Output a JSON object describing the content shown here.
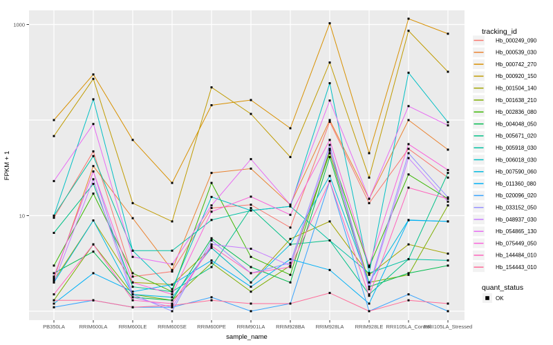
{
  "figure": {
    "y_axis_title": "FPKM + 1",
    "x_axis_title": "sample_name",
    "y_tick_labels": [
      {
        "value": 1000,
        "label": "1000"
      },
      {
        "value": 10,
        "label": "10"
      }
    ],
    "gridline_values": [
      1,
      10,
      100,
      1000
    ],
    "panel_color": "#EBEBEB",
    "grid_color": "#FFFFFF",
    "axis_text_color": "#4D4D4D",
    "tick_mark_color": "#333333",
    "point_color": "#000000",
    "legend": {
      "tracking_title": "tracking_id",
      "quant_title": "quant_status",
      "quant_items": [
        {
          "label": "OK",
          "marker": "black-square"
        }
      ],
      "key_background": "#F2F2F2"
    }
  },
  "chart_data": {
    "type": "line",
    "x_type": "categorical",
    "y_scale": "log10",
    "ylim": [
      0.9,
      1400
    ],
    "legend_position": "right",
    "marker": "black-square",
    "title": "",
    "xlabel": "sample_name",
    "ylabel": "FPKM + 1",
    "categories": [
      "PB350LA",
      "RRIM600LA",
      "RRIM600LE",
      "RRIM600SE",
      "RRIM600PE",
      "RRIM901LA",
      "RRIM928BA",
      "RRIM928LA",
      "RRIM928LE",
      "RRII105LA_Control",
      "RRII105LA_Stressed"
    ],
    "series": [
      {
        "name": "Hb_000249_090",
        "color": "#F8766D",
        "values": [
          9.5,
          47,
          2.3,
          2.6,
          12,
          13,
          7.5,
          96,
          13.5,
          50,
          25
        ]
      },
      {
        "name": "Hb_000539_030",
        "color": "#EA8331",
        "values": [
          2.2,
          33,
          9.4,
          2.7,
          28,
          31,
          13,
          100,
          15,
          100,
          49
        ]
      },
      {
        "name": "Hb_000742_270",
        "color": "#D89000",
        "values": [
          100,
          300,
          62,
          22,
          143,
          162,
          82,
          1030,
          45,
          1150,
          800
        ]
      },
      {
        "name": "Hb_000920_150",
        "color": "#C09B00",
        "values": [
          68,
          270,
          13.5,
          8.7,
          220,
          116,
          41,
          400,
          25,
          860,
          320
        ]
      },
      {
        "name": "Hb_001504_140",
        "color": "#A3A500",
        "values": [
          2.1,
          8.9,
          2.0,
          1.9,
          4.6,
          2.0,
          5.7,
          8.7,
          2.4,
          5.0,
          4.0
        ]
      },
      {
        "name": "Hb_001638_210",
        "color": "#7CAE00",
        "values": [
          1.3,
          5.0,
          1.5,
          1.3,
          3.2,
          1.6,
          3.0,
          45,
          2.0,
          2.4,
          12.8
        ]
      },
      {
        "name": "Hb_002836_080",
        "color": "#39B600",
        "values": [
          3.0,
          17,
          2.5,
          1.6,
          22,
          3.7,
          2.4,
          48,
          2.9,
          27,
          15
        ]
      },
      {
        "name": "Hb_004048_050",
        "color": "#00BB4E",
        "values": [
          2.5,
          4.2,
          1.4,
          1.3,
          5.8,
          2.9,
          2.0,
          41,
          1.8,
          2.5,
          3.0
        ]
      },
      {
        "name": "Hb_005671_020",
        "color": "#00C087",
        "values": [
          6.6,
          21.5,
          1.8,
          1.6,
          2.9,
          12,
          5.0,
          5.5,
          1.5,
          3.5,
          28
        ]
      },
      {
        "name": "Hb_005918_030",
        "color": "#00C1A3",
        "values": [
          10,
          42,
          4.3,
          4.3,
          9.0,
          11.3,
          12.5,
          5.5,
          2.5,
          3.5,
          3.4
        ]
      },
      {
        "name": "Hb_006018_030",
        "color": "#00BFC4",
        "values": [
          10,
          165,
          4.3,
          1.7,
          15.7,
          11.3,
          12.5,
          243,
          2.5,
          313,
          95
        ]
      },
      {
        "name": "Hb_007590_060",
        "color": "#00BAE0",
        "values": [
          2.0,
          8.9,
          1.5,
          1.4,
          4.6,
          2.0,
          5.0,
          26,
          2.0,
          9.0,
          8.7
        ]
      },
      {
        "name": "Hb_011360_080",
        "color": "#00B0F6",
        "values": [
          1.2,
          2.5,
          1.6,
          1.9,
          3.4,
          1.8,
          3.5,
          2.7,
          1.2,
          8.95,
          8.7
        ]
      },
      {
        "name": "Hb_020096_020",
        "color": "#35A2FF",
        "values": [
          1.1,
          1.3,
          1.1,
          1.1,
          1.4,
          1.0,
          1.2,
          23,
          1.0,
          1.5,
          1.0
        ]
      },
      {
        "name": "Hb_033152_050",
        "color": "#9590FF",
        "values": [
          2.3,
          29,
          1.5,
          1.0,
          5.5,
          2.5,
          3.2,
          55,
          1.8,
          45,
          15.5
        ]
      },
      {
        "name": "Hb_048937_030",
        "color": "#C77CFF",
        "values": [
          2.0,
          24,
          1.4,
          1.1,
          5.0,
          4.5,
          3.0,
          50,
          1.7,
          40,
          14
        ]
      },
      {
        "name": "Hb_054865_130",
        "color": "#E76BF3",
        "values": [
          23,
          91,
          3.7,
          3.1,
          12.8,
          39,
          13,
          160,
          15,
          140,
          88
        ]
      },
      {
        "name": "Hb_075449_050",
        "color": "#FA62DB",
        "values": [
          2.3,
          29,
          2.0,
          1.5,
          11,
          15.8,
          10.2,
          62,
          3.0,
          56,
          30
        ]
      },
      {
        "name": "Hb_144484_010",
        "color": "#FF62BC",
        "values": [
          1.5,
          5.0,
          1.3,
          1.2,
          4.8,
          2.5,
          2.9,
          23,
          1.45,
          19.6,
          15
        ]
      },
      {
        "name": "Hb_154443_010",
        "color": "#FF6A98",
        "values": [
          1.3,
          1.3,
          1.1,
          1.15,
          1.3,
          1.2,
          1.2,
          1.55,
          1.0,
          1.3,
          1.2
        ]
      }
    ]
  }
}
